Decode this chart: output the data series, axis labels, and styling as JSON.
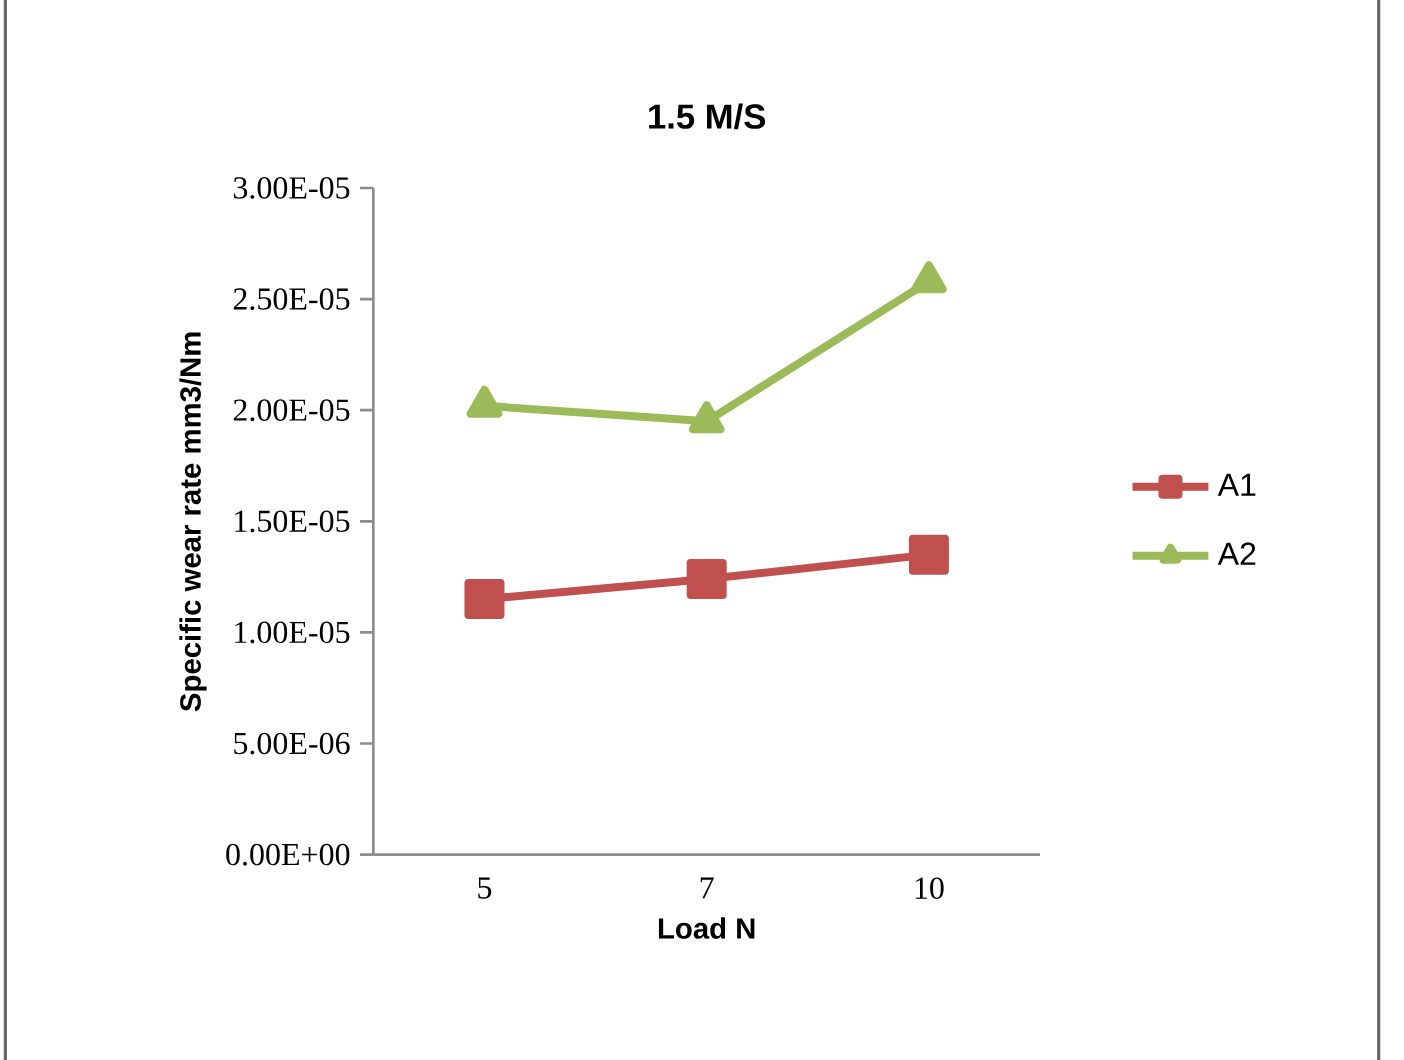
{
  "chart_data": {
    "type": "line",
    "title": "1.5 M/S",
    "xlabel": "Load N",
    "ylabel": "Specific wear rate mm3/Nm",
    "categories": [
      "5",
      "7",
      "10"
    ],
    "series": [
      {
        "name": "A1",
        "color": "#c0504d",
        "marker": "square",
        "values": [
          1.15e-05,
          1.24e-05,
          1.35e-05
        ]
      },
      {
        "name": "A2",
        "color": "#9bbb59",
        "marker": "triangle",
        "values": [
          2.02e-05,
          1.95e-05,
          2.58e-05
        ]
      }
    ],
    "ylim": [
      0,
      3e-05
    ],
    "yticks": [
      {
        "value": 0,
        "label": "0.00E+00"
      },
      {
        "value": 5e-06,
        "label": "5.00E-06"
      },
      {
        "value": 1e-05,
        "label": "1.00E-05"
      },
      {
        "value": 1.5e-05,
        "label": "1.50E-05"
      },
      {
        "value": 2e-05,
        "label": "2.00E-05"
      },
      {
        "value": 2.5e-05,
        "label": "2.50E-05"
      },
      {
        "value": 3e-05,
        "label": "3.00E-05"
      }
    ],
    "grid": false,
    "legend": "right",
    "line_style": "solid"
  }
}
